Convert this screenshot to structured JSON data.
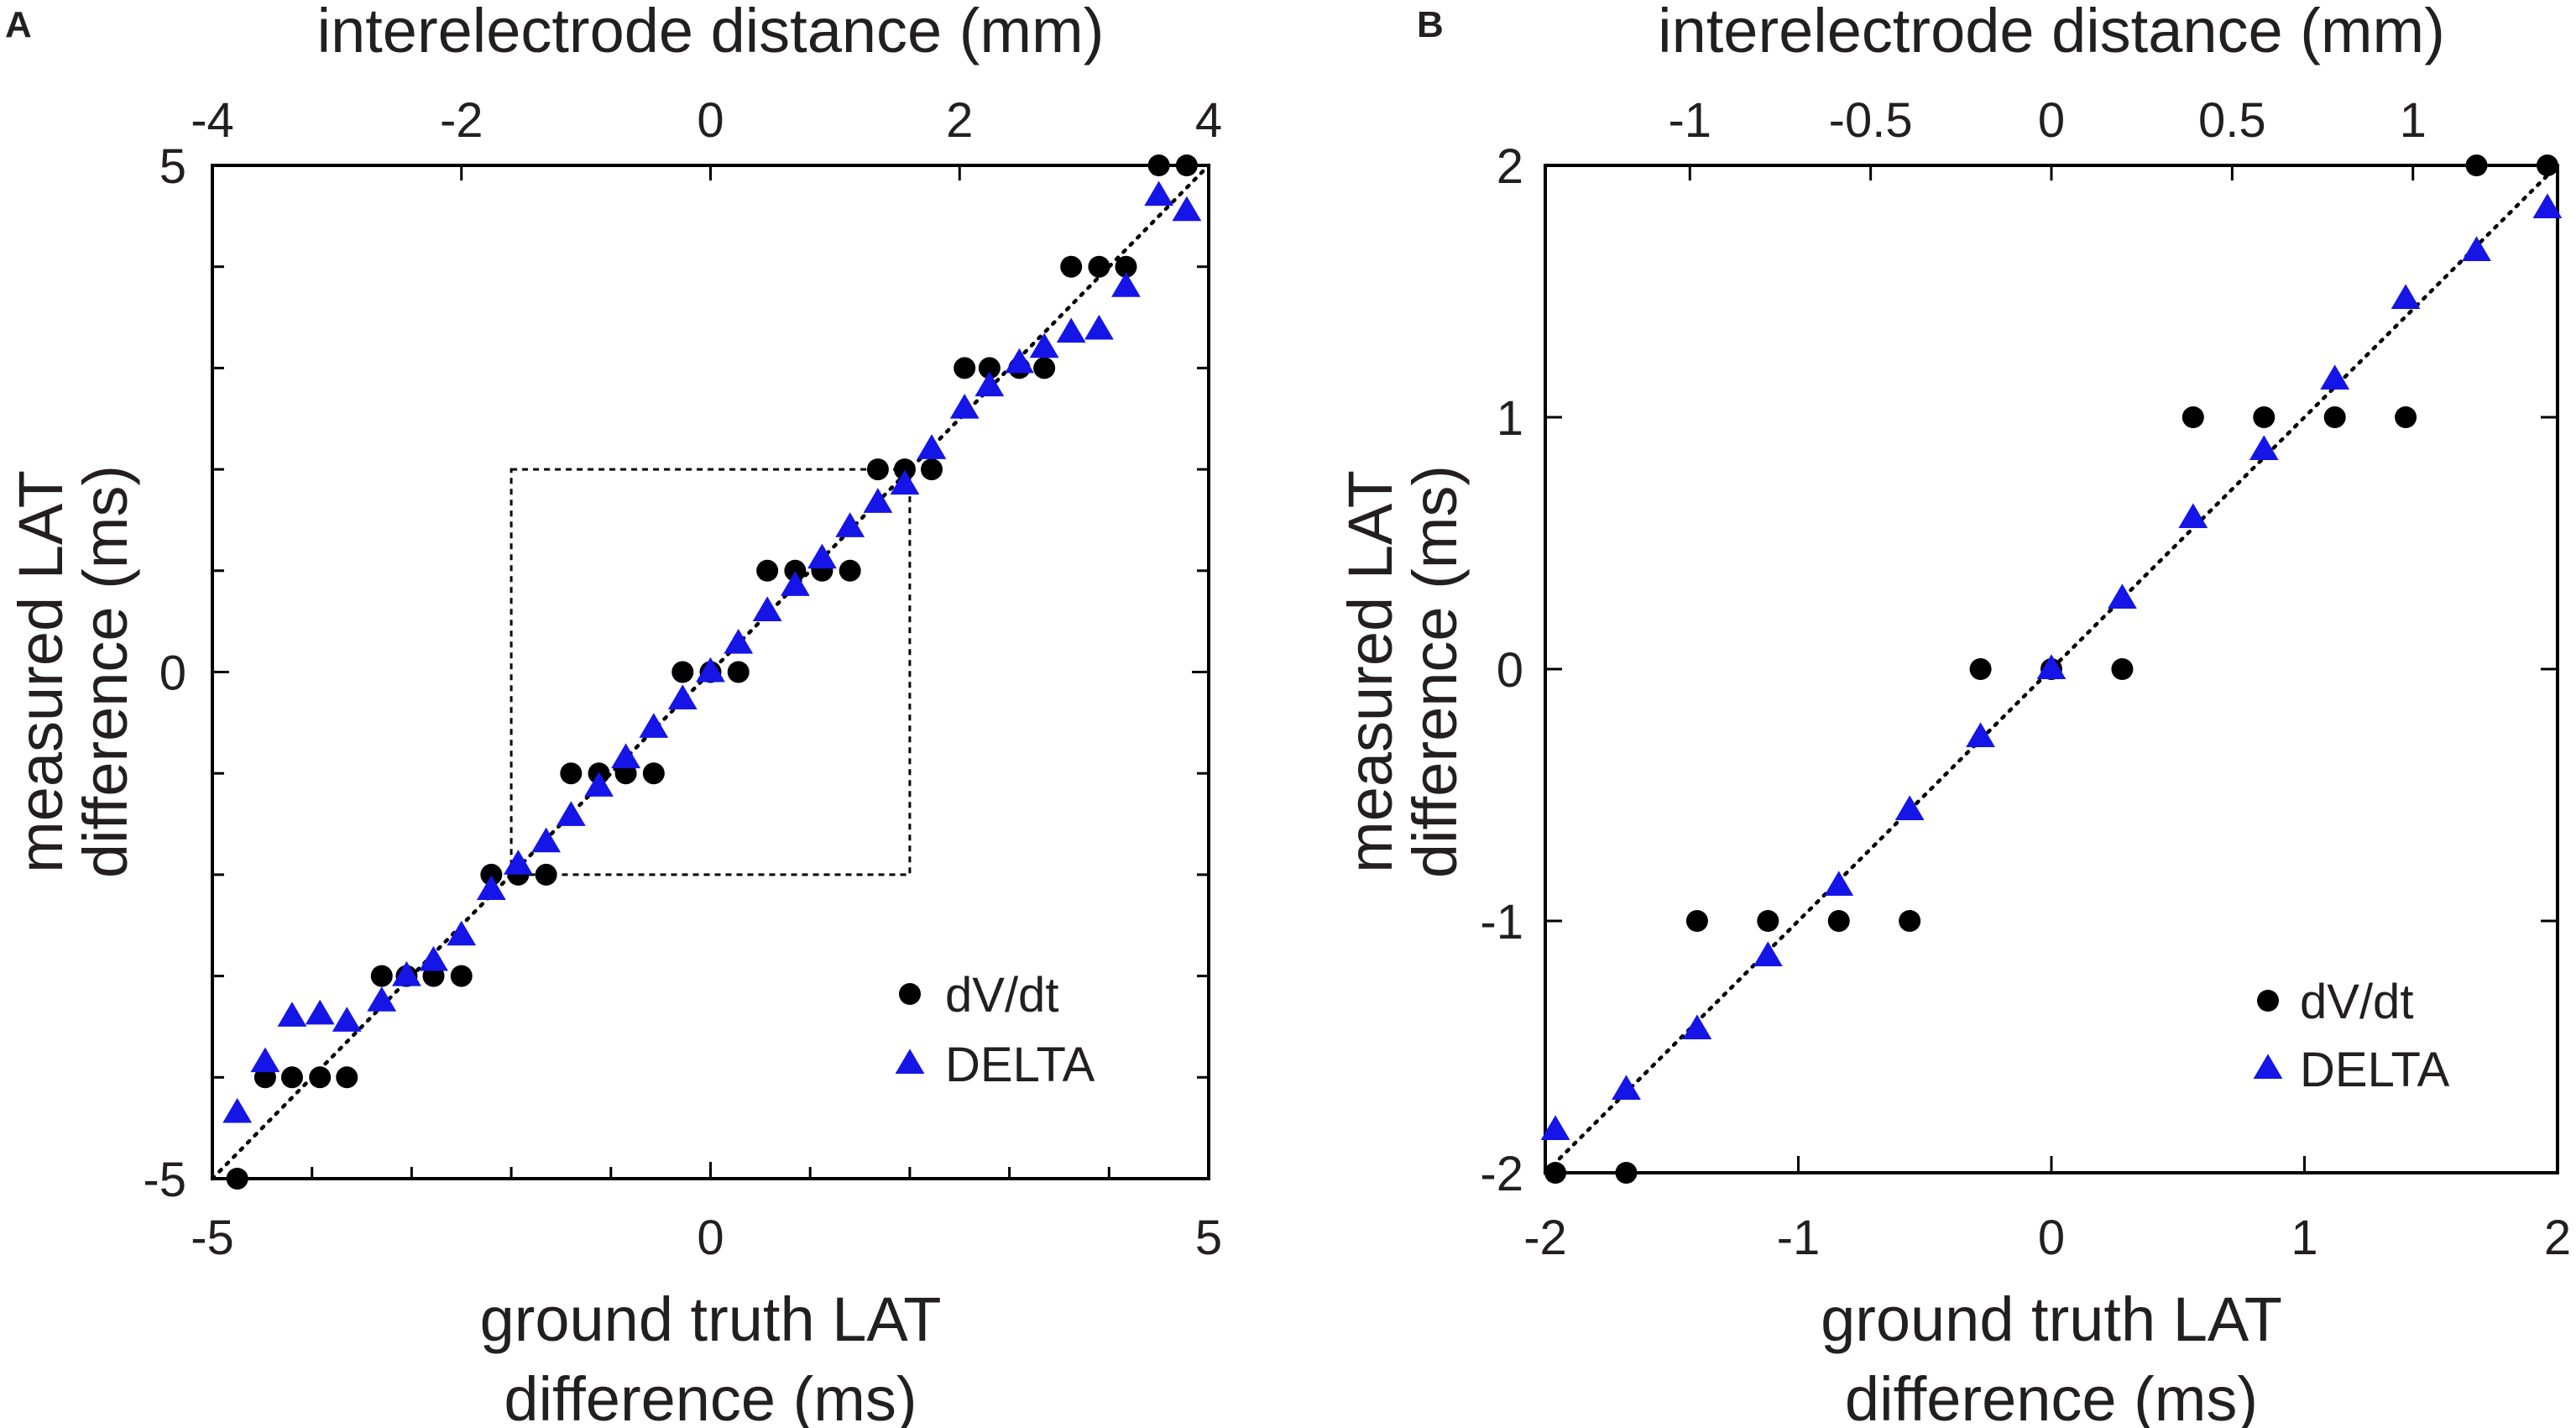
{
  "colors": {
    "dvdt": "#000000",
    "delta": "#1515e8",
    "axis": "#000000"
  },
  "chart_data": [
    {
      "panel": "A",
      "type": "scatter",
      "top_axis_label": "interelectrode distance (mm)",
      "top_ticks": [
        -4,
        -2,
        0,
        2,
        4
      ],
      "top_range": [
        -4,
        4
      ],
      "xlabel": [
        "ground truth LAT",
        "difference (ms)"
      ],
      "ylabel": [
        "measured LAT",
        "difference (ms)"
      ],
      "xlim": [
        -5,
        5
      ],
      "ylim": [
        -5,
        5
      ],
      "xticks": [
        -5,
        0,
        5
      ],
      "yticks": [
        -5,
        0,
        5
      ],
      "minor_ticks": [
        -4,
        -3,
        -2,
        -1,
        1,
        2,
        3,
        4
      ],
      "identity_line": true,
      "zoom_box": {
        "x": [
          -2,
          2
        ],
        "y": [
          -2,
          2
        ]
      },
      "legend": {
        "position": "bottom-right",
        "entries": [
          "dV/dt",
          "DELTA"
        ]
      },
      "series": [
        {
          "name": "dV/dt",
          "marker": "circle",
          "points": [
            [
              -4.75,
              -5
            ],
            [
              -4.47,
              -4
            ],
            [
              -4.2,
              -4
            ],
            [
              -3.92,
              -4
            ],
            [
              -3.65,
              -4
            ],
            [
              -3.3,
              -3
            ],
            [
              -3.05,
              -3
            ],
            [
              -2.78,
              -3
            ],
            [
              -2.5,
              -3
            ],
            [
              -2.2,
              -2
            ],
            [
              -1.93,
              -2
            ],
            [
              -1.65,
              -2
            ],
            [
              -1.4,
              -1
            ],
            [
              -1.12,
              -1
            ],
            [
              -0.85,
              -1
            ],
            [
              -0.57,
              -1
            ],
            [
              -0.28,
              0
            ],
            [
              0,
              0
            ],
            [
              0.28,
              0
            ],
            [
              0.57,
              1
            ],
            [
              0.85,
              1
            ],
            [
              1.12,
              1
            ],
            [
              1.4,
              1
            ],
            [
              1.68,
              2
            ],
            [
              1.95,
              2
            ],
            [
              2.22,
              2
            ],
            [
              2.55,
              3
            ],
            [
              2.8,
              3
            ],
            [
              3.1,
              3
            ],
            [
              3.35,
              3
            ],
            [
              3.62,
              4
            ],
            [
              3.9,
              4
            ],
            [
              4.17,
              4
            ],
            [
              4.5,
              5
            ],
            [
              4.78,
              5
            ]
          ]
        },
        {
          "name": "DELTA",
          "marker": "triangle",
          "points": [
            [
              -4.75,
              -4.35
            ],
            [
              -4.47,
              -3.85
            ],
            [
              -4.2,
              -3.4
            ],
            [
              -3.92,
              -3.38
            ],
            [
              -3.65,
              -3.45
            ],
            [
              -3.3,
              -3.25
            ],
            [
              -3.05,
              -3.0
            ],
            [
              -2.78,
              -2.85
            ],
            [
              -2.5,
              -2.6
            ],
            [
              -2.2,
              -2.15
            ],
            [
              -1.93,
              -1.9
            ],
            [
              -1.65,
              -1.68
            ],
            [
              -1.4,
              -1.42
            ],
            [
              -1.12,
              -1.13
            ],
            [
              -0.85,
              -0.85
            ],
            [
              -0.57,
              -0.55
            ],
            [
              -0.28,
              -0.27
            ],
            [
              0,
              0
            ],
            [
              0.28,
              0.28
            ],
            [
              0.57,
              0.6
            ],
            [
              0.85,
              0.85
            ],
            [
              1.12,
              1.12
            ],
            [
              1.4,
              1.43
            ],
            [
              1.68,
              1.67
            ],
            [
              1.95,
              1.85
            ],
            [
              2.22,
              2.2
            ],
            [
              2.55,
              2.6
            ],
            [
              2.8,
              2.82
            ],
            [
              3.1,
              3.05
            ],
            [
              3.35,
              3.2
            ],
            [
              3.62,
              3.35
            ],
            [
              3.9,
              3.38
            ],
            [
              4.17,
              3.8
            ],
            [
              4.5,
              4.7
            ],
            [
              4.78,
              4.55
            ]
          ]
        }
      ]
    },
    {
      "panel": "B",
      "type": "scatter",
      "top_axis_label": "interelectrode distance (mm)",
      "top_ticks": [
        -1,
        -0.5,
        0,
        0.5,
        1
      ],
      "top_range": [
        -1.4,
        1.4
      ],
      "xlabel": [
        "ground truth LAT",
        "difference (ms)"
      ],
      "ylabel": [
        "measured LAT",
        "difference (ms)"
      ],
      "xlim": [
        -2,
        2
      ],
      "ylim": [
        -2,
        2
      ],
      "xticks": [
        -2,
        -1,
        0,
        1,
        2
      ],
      "yticks": [
        -2,
        -1,
        0,
        1,
        2
      ],
      "minor_ticks": [],
      "identity_line": true,
      "zoom_box": null,
      "legend": {
        "position": "bottom-right",
        "entries": [
          "dV/dt",
          "DELTA"
        ]
      },
      "series": [
        {
          "name": "dV/dt",
          "marker": "circle",
          "points": [
            [
              -1.96,
              -2
            ],
            [
              -1.68,
              -2
            ],
            [
              -1.4,
              -1
            ],
            [
              -1.12,
              -1
            ],
            [
              -0.84,
              -1
            ],
            [
              -0.56,
              -1
            ],
            [
              -0.28,
              0
            ],
            [
              0,
              0
            ],
            [
              0.28,
              0
            ],
            [
              0.56,
              1
            ],
            [
              0.84,
              1
            ],
            [
              1.12,
              1
            ],
            [
              1.4,
              1
            ],
            [
              1.68,
              2
            ],
            [
              1.96,
              2
            ]
          ]
        },
        {
          "name": "DELTA",
          "marker": "triangle",
          "points": [
            [
              -1.96,
              -1.83
            ],
            [
              -1.68,
              -1.67
            ],
            [
              -1.4,
              -1.43
            ],
            [
              -1.12,
              -1.14
            ],
            [
              -0.84,
              -0.86
            ],
            [
              -0.56,
              -0.56
            ],
            [
              -0.28,
              -0.27
            ],
            [
              0,
              0
            ],
            [
              0.28,
              0.28
            ],
            [
              0.56,
              0.6
            ],
            [
              0.84,
              0.87
            ],
            [
              1.12,
              1.15
            ],
            [
              1.4,
              1.47
            ],
            [
              1.68,
              1.66
            ],
            [
              1.96,
              1.83
            ]
          ]
        }
      ]
    }
  ]
}
